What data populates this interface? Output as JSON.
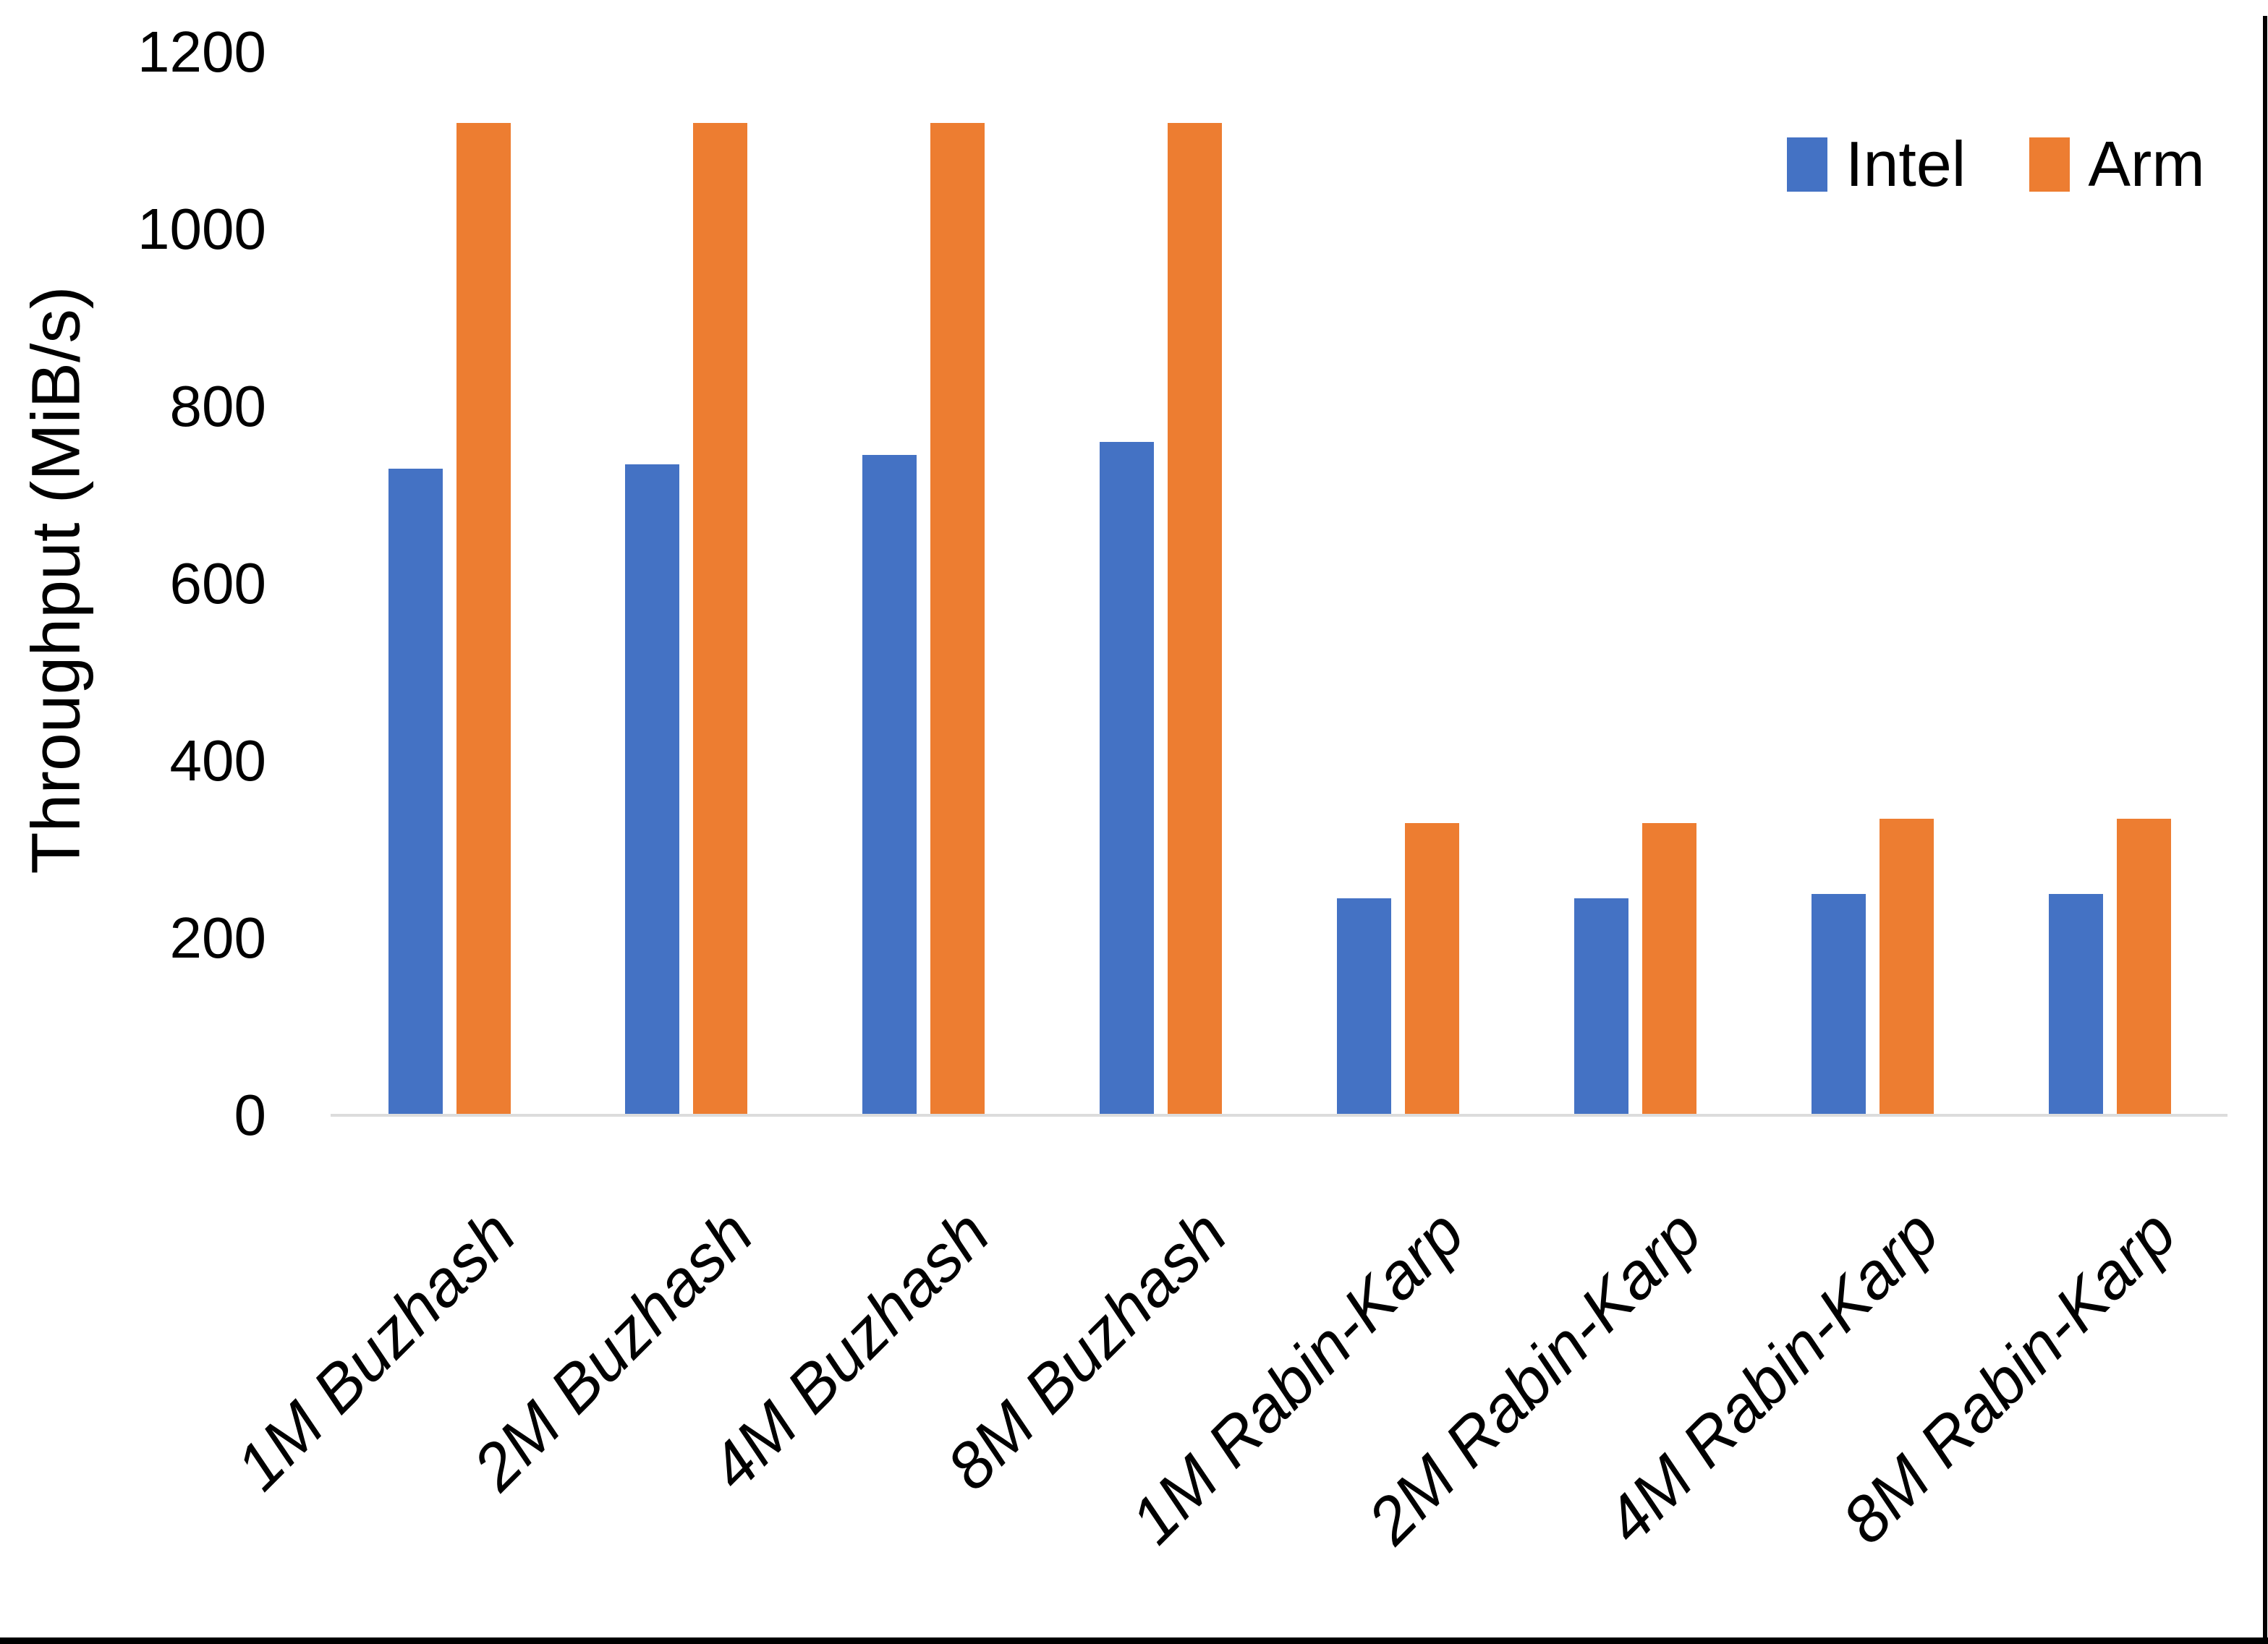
{
  "chart_data": {
    "type": "bar",
    "title": "",
    "xlabel": "",
    "ylabel": "Throughput (MiB/s)",
    "categories": [
      "1M Buzhash",
      "2M Buzhash",
      "4M Buzhash",
      "8M Buzhash",
      "1M Rabin-Karp",
      "2M Rabin-Karp",
      "4M Rabin-Karp",
      "8M Rabin-Karp"
    ],
    "series": [
      {
        "name": "Intel",
        "color": "#4472C4",
        "values": [
          730,
          735,
          745,
          760,
          245,
          245,
          250,
          250
        ]
      },
      {
        "name": "Arm",
        "color": "#ED7D31",
        "values": [
          1120,
          1120,
          1120,
          1120,
          330,
          330,
          335,
          335
        ]
      }
    ],
    "ylim": [
      0,
      1200
    ],
    "yticks": [
      0,
      200,
      400,
      600,
      800,
      1000,
      1200
    ],
    "grid": false,
    "legend_position": "top-right",
    "colors": {
      "axis_baseline": "#DCDCDC",
      "text": "#000000",
      "background": "#FFFFFF",
      "frame_border": "#000000"
    }
  }
}
